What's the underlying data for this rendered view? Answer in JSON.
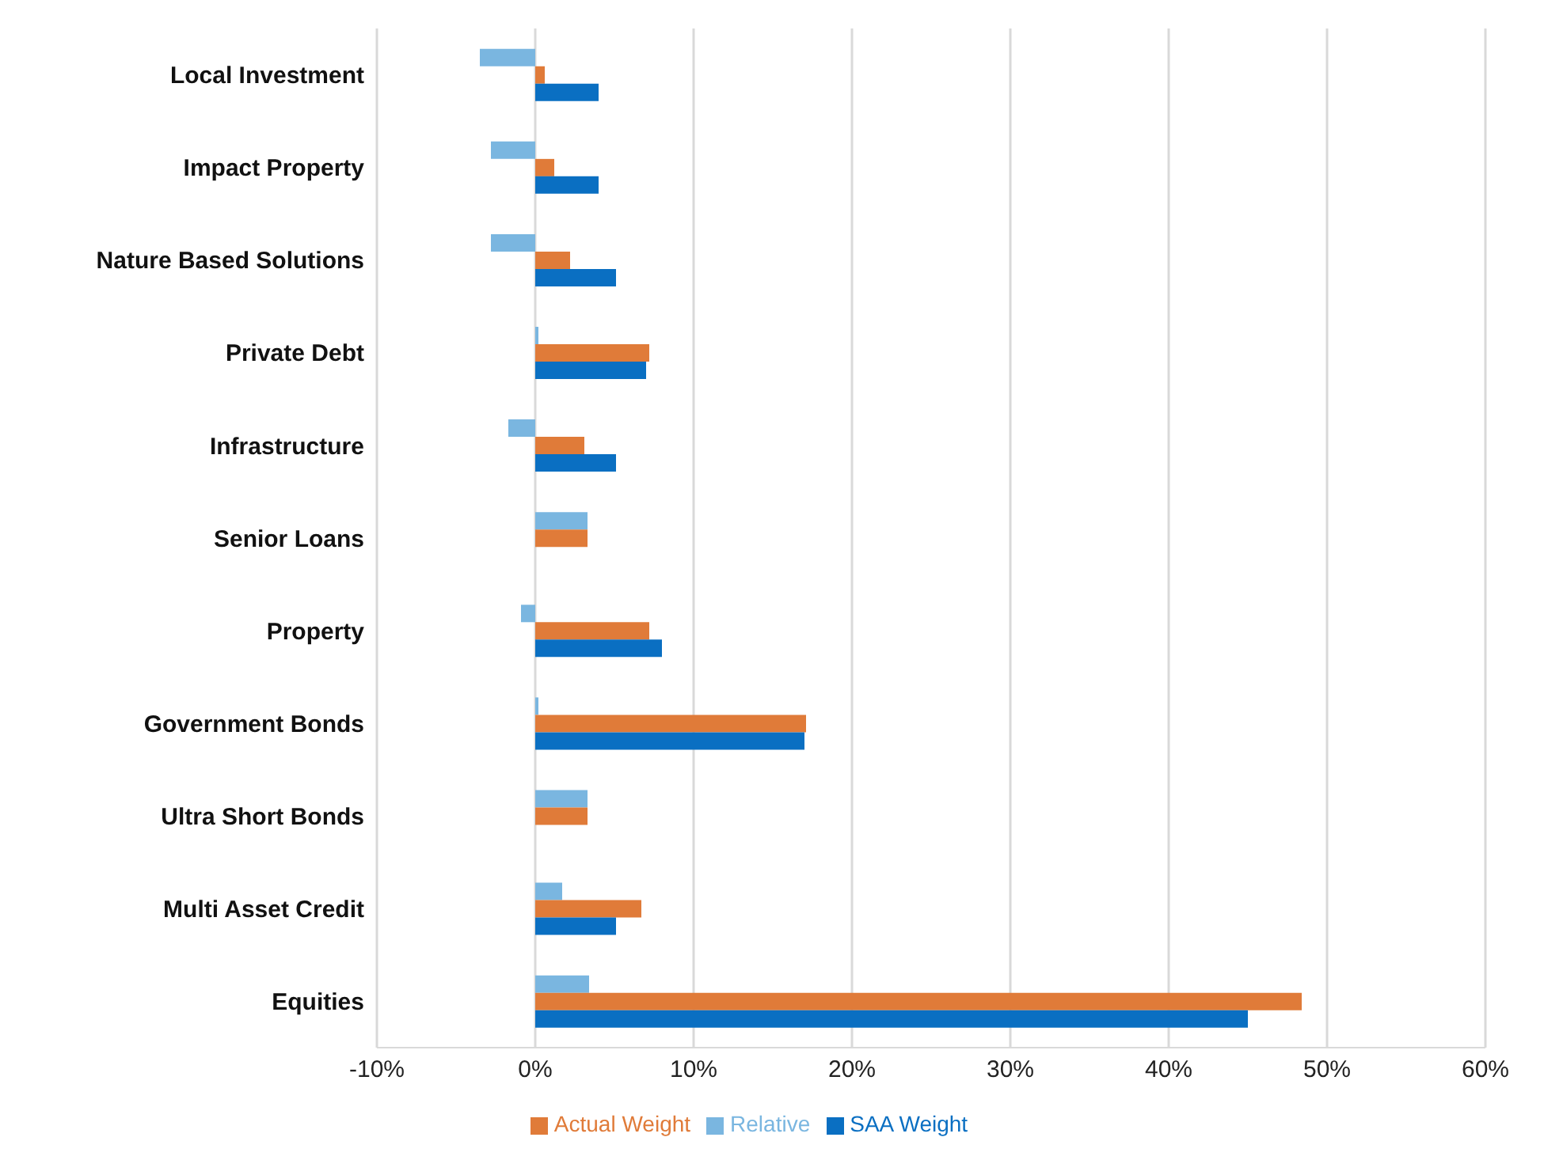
{
  "chart_data": {
    "type": "bar",
    "orientation": "horizontal",
    "categories": [
      "Local Investment",
      "Impact Property",
      "Nature Based Solutions",
      "Private Debt",
      "Infrastructure",
      "Senior Loans",
      "Property",
      "Government Bonds",
      "Ultra Short Bonds",
      "Multi Asset Credit",
      "Equities"
    ],
    "series": [
      {
        "name": "Relative",
        "color": "#7ab6e0",
        "values": [
          -3.5,
          -2.8,
          -2.8,
          0.2,
          -1.7,
          3.3,
          -0.9,
          0.2,
          3.3,
          1.7,
          3.4
        ]
      },
      {
        "name": "Actual Weight",
        "color": "#e07b39",
        "values": [
          0.6,
          1.2,
          2.2,
          7.2,
          3.1,
          3.3,
          7.2,
          17.1,
          3.3,
          6.7,
          48.4
        ]
      },
      {
        "name": "SAA Weight",
        "color": "#0a6fc2",
        "values": [
          4.0,
          4.0,
          5.1,
          7.0,
          5.1,
          0,
          8.0,
          17.0,
          0,
          5.1,
          45.0
        ]
      }
    ],
    "xlim": [
      -10,
      60
    ],
    "xticks": [
      {
        "value": -10,
        "label": "-10%"
      },
      {
        "value": 0,
        "label": "0%"
      },
      {
        "value": 10,
        "label": "10%"
      },
      {
        "value": 20,
        "label": "20%"
      },
      {
        "value": 30,
        "label": "30%"
      },
      {
        "value": 40,
        "label": "40%"
      },
      {
        "value": 50,
        "label": "50%"
      },
      {
        "value": 60,
        "label": "60%"
      }
    ],
    "grid": "x",
    "legend": "bottom"
  }
}
